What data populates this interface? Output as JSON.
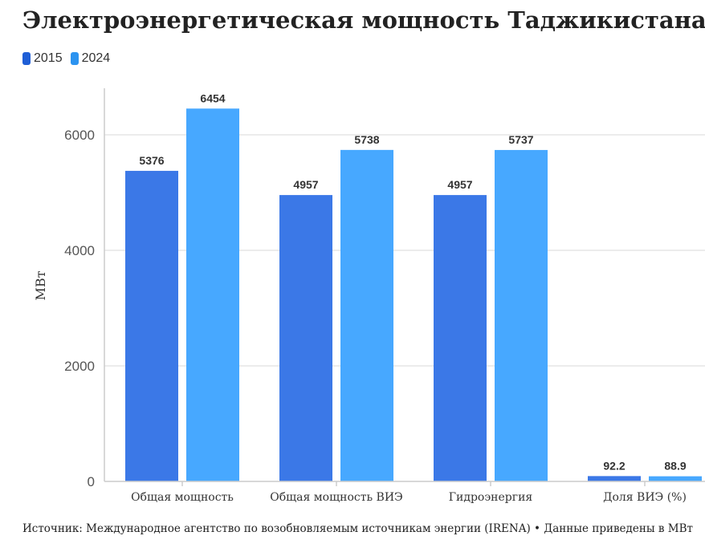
{
  "title": "Электроэнергетическая мощность Таджикистана",
  "source": "Источник: Международное агентство по возобновляемым источникам энергии (IRENA) • Данные приведены в МВт",
  "colors": {
    "series_2015": "#3b78e7",
    "series_2024": "#47a8ff",
    "grid": "#e5e5e5",
    "axis": "#cccccc"
  },
  "chart_data": {
    "type": "bar",
    "categories": [
      "Общая мощность",
      "Общая мощность ВИЭ",
      "Гидроэнергия",
      "Доля ВИЭ (%)"
    ],
    "series": [
      {
        "name": "2015",
        "values": [
          5376,
          4957,
          4957,
          92.2
        ],
        "labels": [
          "5376",
          "4957",
          "4957",
          "92.2"
        ]
      },
      {
        "name": "2024",
        "values": [
          6454,
          5738,
          5737,
          88.9
        ],
        "labels": [
          "6454",
          "5738",
          "5737",
          "88.9"
        ]
      }
    ],
    "ylabel": "МВт",
    "ylim": [
      0,
      6800
    ],
    "yticks": [
      0,
      2000,
      4000,
      6000
    ],
    "legend": "top-left",
    "grid": true
  }
}
